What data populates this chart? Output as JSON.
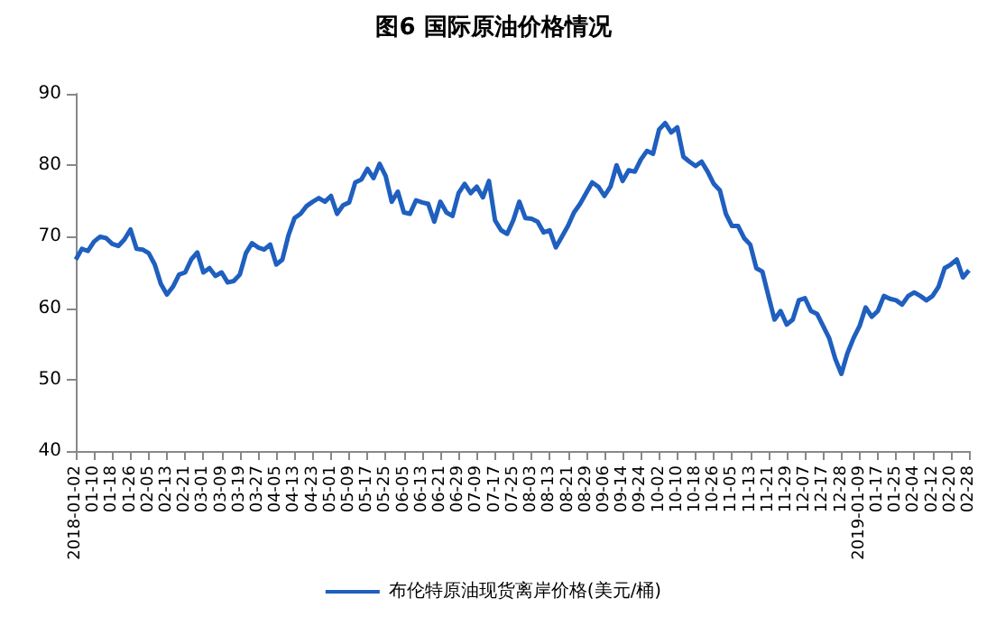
{
  "chart_data": {
    "type": "line",
    "title": "图6 国际原油价格情况",
    "categories": [
      "2018-01-02",
      null,
      null,
      "01-10",
      null,
      null,
      "01-18",
      null,
      null,
      "01-26",
      null,
      null,
      "02-05",
      null,
      null,
      "02-13",
      null,
      null,
      "02-21",
      null,
      null,
      "03-01",
      null,
      null,
      "03-09",
      null,
      null,
      "03-19",
      null,
      null,
      "03-27",
      null,
      null,
      "04-05",
      null,
      null,
      "04-13",
      null,
      null,
      "04-23",
      null,
      null,
      "05-01",
      null,
      null,
      "05-09",
      null,
      null,
      "05-17",
      null,
      null,
      "05-25",
      null,
      null,
      "06-05",
      null,
      null,
      "06-13",
      null,
      null,
      "06-21",
      null,
      null,
      "06-29",
      null,
      null,
      "07-09",
      null,
      null,
      "07-17",
      null,
      null,
      "07-25",
      null,
      null,
      "08-03",
      null,
      null,
      "08-13",
      null,
      null,
      "08-21",
      null,
      null,
      "08-29",
      null,
      null,
      "09-06",
      null,
      null,
      "09-14",
      null,
      null,
      "09-24",
      null,
      null,
      "10-02",
      null,
      null,
      "10-10",
      null,
      null,
      "10-18",
      null,
      null,
      "10-26",
      null,
      null,
      "11-05",
      null,
      null,
      "11-13",
      null,
      null,
      "11-21",
      null,
      null,
      "11-29",
      null,
      null,
      "12-07",
      null,
      null,
      "12-17",
      null,
      null,
      "12-28",
      null,
      null,
      "2019-01-09",
      null,
      null,
      "01-17",
      null,
      null,
      "01-25",
      null,
      null,
      "02-04",
      null,
      null,
      "02-12",
      null,
      null,
      "02-20",
      null,
      null,
      "02-28"
    ],
    "series": [
      {
        "name": "布伦特原油现货离岸价格(美元/桶)",
        "color": "#1f5fbf",
        "values": [
          66.8,
          68.3,
          68.0,
          69.3,
          70.0,
          69.8,
          69.0,
          68.7,
          69.6,
          71.0,
          68.3,
          68.2,
          67.7,
          66.1,
          63.4,
          61.9,
          63.0,
          64.7,
          65.0,
          66.8,
          67.8,
          65.0,
          65.6,
          64.5,
          65.0,
          63.6,
          63.8,
          64.7,
          67.7,
          69.1,
          68.5,
          68.2,
          68.9,
          66.1,
          66.8,
          70.2,
          72.6,
          73.2,
          74.3,
          74.9,
          75.4,
          74.9,
          75.7,
          73.2,
          74.4,
          74.8,
          77.6,
          78.0,
          79.5,
          78.2,
          80.2,
          78.5,
          74.9,
          76.3,
          73.4,
          73.2,
          75.1,
          74.8,
          74.6,
          72.1,
          74.9,
          73.4,
          72.9,
          76.1,
          77.4,
          76.1,
          77.0,
          75.5,
          77.8,
          72.3,
          70.9,
          70.4,
          72.3,
          74.9,
          72.6,
          72.5,
          72.1,
          70.6,
          70.9,
          68.5,
          70.0,
          71.5,
          73.4,
          74.6,
          76.1,
          77.6,
          77.0,
          75.7,
          77.0,
          80.0,
          77.8,
          79.3,
          79.1,
          80.8,
          82.0,
          81.6,
          85.0,
          85.9,
          84.6,
          85.3,
          81.2,
          80.5,
          79.9,
          80.5,
          79.1,
          77.4,
          76.5,
          73.2,
          71.5,
          71.5,
          69.8,
          68.9,
          65.6,
          65.1,
          61.7,
          58.4,
          59.6,
          57.7,
          58.4,
          61.1,
          61.4,
          59.6,
          59.2,
          57.5,
          55.8,
          52.9,
          50.8,
          53.7,
          55.8,
          57.5,
          60.1,
          58.8,
          59.6,
          61.7,
          61.3,
          61.1,
          60.5,
          61.7,
          62.2,
          61.7,
          61.1,
          61.7,
          63.0,
          65.6,
          66.1,
          66.8,
          64.3,
          65.3
        ]
      }
    ],
    "ylim": [
      40,
      90
    ],
    "yticks": [
      40,
      50,
      60,
      70,
      80,
      90
    ],
    "grid": false,
    "legend": "bottom",
    "marker": "none",
    "line_style": "solid"
  }
}
